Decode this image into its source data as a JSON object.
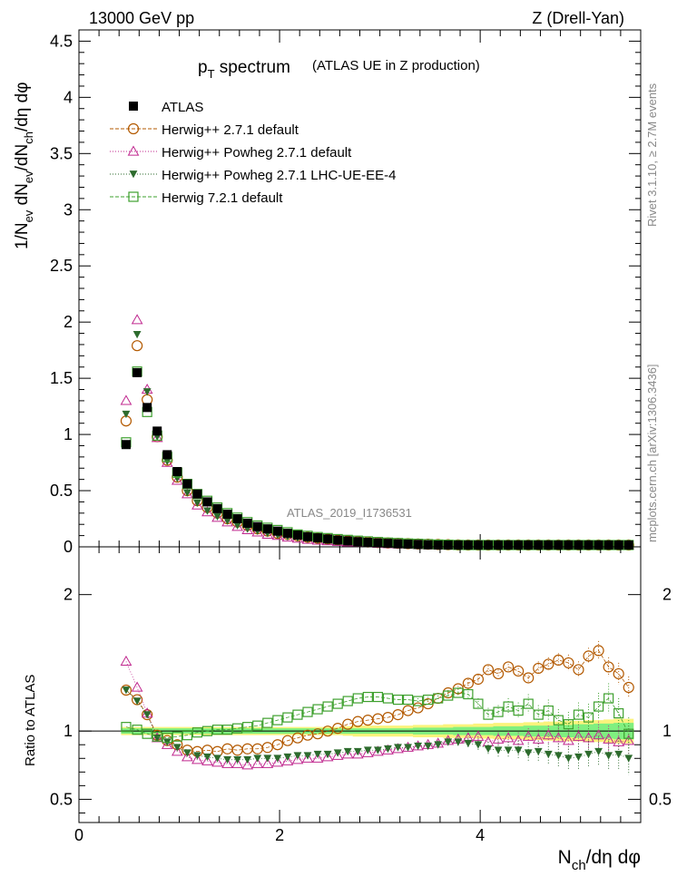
{
  "header": {
    "left": "13000 GeV pp",
    "right": "Z (Drell-Yan)"
  },
  "side": {
    "rivet": "Rivet 3.1.10, ≥ 2.7M events",
    "mcplots": "mcplots.cern.ch [arXiv:1306.3436]"
  },
  "analysis_label": "ATLAS_2019_I1736531",
  "colors": {
    "atlas": "#000000",
    "herwig271": "#b35900",
    "powheg": "#c0288f",
    "lhcue": "#2d6b2d",
    "herwig721": "#3ea02e",
    "band_inner": "#80ef80",
    "band_outer": "#fbf37c"
  },
  "chart_data": [
    {
      "type": "scatter",
      "title": "p_T spectrum",
      "title_main": "p",
      "title_sub": "T",
      "title_rest": " spectrum",
      "title_note": "(ATLAS UE in Z production)",
      "ylabel": "1/N_ev dN_ev/dN_ch/dη dφ",
      "ylim": [
        0,
        4.6
      ],
      "yticks": [
        "0",
        "0.5",
        "1",
        "1.5",
        "2",
        "2.5",
        "3",
        "3.5",
        "4",
        "4.5"
      ],
      "legend_position": "top-left",
      "x": [
        0.47,
        0.58,
        0.68,
        0.78,
        0.88,
        0.98,
        1.08,
        1.18,
        1.28,
        1.38,
        1.48,
        1.58,
        1.68,
        1.78,
        1.88,
        1.98,
        2.08,
        2.18,
        2.28,
        2.38,
        2.48,
        2.58,
        2.68,
        2.78,
        2.88,
        2.98,
        3.08,
        3.18,
        3.28,
        3.38,
        3.48,
        3.58,
        3.68,
        3.78,
        3.88,
        3.98,
        4.08,
        4.18,
        4.28,
        4.38,
        4.48,
        4.58,
        4.68,
        4.78,
        4.88,
        4.98,
        5.08,
        5.18,
        5.28,
        5.38,
        5.48
      ],
      "series": [
        {
          "name": "ATLAS",
          "values": [
            0.91,
            1.55,
            1.24,
            1.03,
            0.82,
            0.67,
            0.56,
            0.47,
            0.4,
            0.34,
            0.29,
            0.25,
            0.21,
            0.18,
            0.16,
            0.14,
            0.12,
            0.105,
            0.09,
            0.08,
            0.07,
            0.06,
            0.053,
            0.046,
            0.04,
            0.035,
            0.031,
            0.027,
            0.024,
            0.021,
            0.018,
            0.016,
            0.014,
            0.012,
            0.011,
            0.0095,
            0.0085,
            0.0075,
            0.0065,
            0.0058,
            0.005,
            0.0045,
            0.004,
            0.0035,
            0.003,
            0.0027,
            0.0024,
            0.0021,
            0.0019,
            0.0017,
            0.0015
          ]
        },
        {
          "name": "Herwig++ 2.7.1 default",
          "values": [
            1.12,
            1.79,
            1.31,
            0.98,
            0.77,
            0.62,
            0.5,
            0.41,
            0.35,
            0.3,
            0.25,
            0.22,
            0.19,
            0.16,
            0.14,
            0.12,
            0.11,
            0.097,
            0.085,
            0.076,
            0.068,
            0.06,
            0.054,
            0.048,
            0.043,
            0.038,
            0.034,
            0.031,
            0.028,
            0.025,
            0.023,
            0.021,
            0.019,
            0.017,
            0.015,
            0.014,
            0.013,
            0.012,
            0.011,
            0.0098,
            0.0089,
            0.008,
            0.0072,
            0.0065,
            0.0058,
            0.0052,
            0.0048,
            0.0043,
            0.004,
            0.0036,
            0.0032
          ]
        },
        {
          "name": "Herwig++ Powheg 2.7.1 default",
          "values": [
            1.3,
            2.02,
            1.4,
            0.97,
            0.75,
            0.59,
            0.47,
            0.37,
            0.31,
            0.26,
            0.22,
            0.18,
            0.15,
            0.13,
            0.11,
            0.1,
            0.085,
            0.075,
            0.065,
            0.058,
            0.052,
            0.046,
            0.041,
            0.037,
            0.033,
            0.029,
            0.026,
            0.023,
            0.021,
            0.018,
            0.016,
            0.014,
            0.013,
            0.011,
            0.01,
            0.0088,
            0.0078,
            0.007,
            0.0062,
            0.0055,
            0.0049,
            0.0044,
            0.0039,
            0.0035,
            0.0031,
            0.0028,
            0.0025,
            0.0022,
            0.002,
            0.0018,
            0.0016
          ]
        },
        {
          "name": "Herwig++ Powheg 2.7.1 LHC-UE-EE-4",
          "values": [
            1.18,
            1.89,
            1.38,
            0.98,
            0.76,
            0.61,
            0.48,
            0.39,
            0.32,
            0.27,
            0.23,
            0.19,
            0.16,
            0.14,
            0.12,
            0.105,
            0.09,
            0.08,
            0.07,
            0.062,
            0.055,
            0.048,
            0.043,
            0.038,
            0.034,
            0.03,
            0.027,
            0.024,
            0.021,
            0.019,
            0.016,
            0.014,
            0.013,
            0.011,
            0.0095,
            0.0083,
            0.0073,
            0.0064,
            0.0056,
            0.005,
            0.0043,
            0.0038,
            0.0033,
            0.0029,
            0.0026,
            0.0023,
            0.002,
            0.0018,
            0.0016,
            0.0014,
            0.0013
          ]
        },
        {
          "name": "Herwig 7.2.1 default",
          "values": [
            0.93,
            1.56,
            1.2,
            0.99,
            0.8,
            0.66,
            0.56,
            0.47,
            0.41,
            0.35,
            0.3,
            0.26,
            0.22,
            0.19,
            0.17,
            0.15,
            0.13,
            0.11,
            0.098,
            0.087,
            0.078,
            0.069,
            0.062,
            0.055,
            0.049,
            0.043,
            0.038,
            0.034,
            0.03,
            0.027,
            0.024,
            0.021,
            0.019,
            0.017,
            0.015,
            0.013,
            0.012,
            0.011,
            0.0096,
            0.0085,
            0.0075,
            0.0066,
            0.0058,
            0.0052,
            0.0046,
            0.0041,
            0.0037,
            0.0033,
            0.003,
            0.0027,
            0.0024
          ]
        }
      ]
    },
    {
      "type": "scatter",
      "ylabel": "Ratio to ATLAS",
      "xlabel": "N_ch/dη dφ",
      "xlabel_main": "N",
      "xlabel_sub": "ch",
      "xlabel_rest": "/dη dφ",
      "xlim": [
        0,
        5.6
      ],
      "ylim": [
        0.33,
        2.35
      ],
      "xticks": [
        "0",
        "2",
        "4"
      ],
      "yticks": [
        "0.5",
        "1",
        "2"
      ],
      "reference_band": "ATLAS uncertainty (green inner, yellow outer)",
      "x": [
        0.47,
        0.58,
        0.68,
        0.78,
        0.88,
        0.98,
        1.08,
        1.18,
        1.28,
        1.38,
        1.48,
        1.58,
        1.68,
        1.78,
        1.88,
        1.98,
        2.08,
        2.18,
        2.28,
        2.38,
        2.48,
        2.58,
        2.68,
        2.78,
        2.88,
        2.98,
        3.08,
        3.18,
        3.28,
        3.38,
        3.48,
        3.58,
        3.68,
        3.78,
        3.88,
        3.98,
        4.08,
        4.18,
        4.28,
        4.38,
        4.48,
        4.58,
        4.68,
        4.78,
        4.88,
        4.98,
        5.08,
        5.18,
        5.28,
        5.38,
        5.48
      ],
      "band_inner": [
        0.02,
        0.02,
        0.02,
        0.02,
        0.02,
        0.02,
        0.02,
        0.02,
        0.02,
        0.02,
        0.02,
        0.02,
        0.02,
        0.02,
        0.02,
        0.02,
        0.02,
        0.02,
        0.02,
        0.02,
        0.02,
        0.02,
        0.02,
        0.02,
        0.02,
        0.02,
        0.02,
        0.02,
        0.02,
        0.025,
        0.025,
        0.025,
        0.025,
        0.03,
        0.03,
        0.03,
        0.03,
        0.035,
        0.035,
        0.035,
        0.04,
        0.04,
        0.04,
        0.045,
        0.045,
        0.05,
        0.05,
        0.055,
        0.055,
        0.06,
        0.06
      ],
      "band_outer": [
        0.03,
        0.03,
        0.03,
        0.03,
        0.03,
        0.03,
        0.03,
        0.03,
        0.03,
        0.03,
        0.03,
        0.03,
        0.03,
        0.03,
        0.03,
        0.03,
        0.03,
        0.03,
        0.03,
        0.03,
        0.03,
        0.03,
        0.035,
        0.04,
        0.04,
        0.04,
        0.04,
        0.04,
        0.04,
        0.045,
        0.045,
        0.045,
        0.05,
        0.05,
        0.05,
        0.055,
        0.055,
        0.06,
        0.06,
        0.06,
        0.065,
        0.065,
        0.07,
        0.07,
        0.075,
        0.075,
        0.08,
        0.08,
        0.085,
        0.09,
        0.09
      ],
      "series": [
        {
          "name": "Herwig++ 2.7.1 default",
          "values": [
            1.3,
            1.23,
            1.12,
            0.97,
            0.93,
            0.9,
            0.86,
            0.85,
            0.86,
            0.85,
            0.87,
            0.86,
            0.87,
            0.87,
            0.88,
            0.9,
            0.93,
            0.95,
            0.97,
            0.98,
            1.0,
            1.02,
            1.05,
            1.07,
            1.08,
            1.09,
            1.1,
            1.12,
            1.15,
            1.17,
            1.2,
            1.24,
            1.28,
            1.31,
            1.35,
            1.38,
            1.45,
            1.42,
            1.47,
            1.44,
            1.39,
            1.46,
            1.49,
            1.52,
            1.5,
            1.45,
            1.55,
            1.59,
            1.47,
            1.42,
            1.32
          ],
          "errors": [
            0.01,
            0.01,
            0.01,
            0.01,
            0.01,
            0.01,
            0.01,
            0.01,
            0.01,
            0.01,
            0.01,
            0.01,
            0.01,
            0.01,
            0.01,
            0.01,
            0.01,
            0.01,
            0.01,
            0.01,
            0.01,
            0.01,
            0.01,
            0.01,
            0.01,
            0.01,
            0.01,
            0.01,
            0.01,
            0.01,
            0.02,
            0.02,
            0.02,
            0.02,
            0.03,
            0.03,
            0.03,
            0.03,
            0.04,
            0.04,
            0.04,
            0.05,
            0.05,
            0.05,
            0.06,
            0.06,
            0.06,
            0.07,
            0.07,
            0.08,
            0.08
          ]
        },
        {
          "name": "Herwig++ Powheg 2.7.1 default",
          "values": [
            1.51,
            1.32,
            1.13,
            0.95,
            0.9,
            0.85,
            0.81,
            0.79,
            0.78,
            0.77,
            0.76,
            0.76,
            0.75,
            0.76,
            0.76,
            0.77,
            0.78,
            0.79,
            0.8,
            0.8,
            0.81,
            0.82,
            0.83,
            0.83,
            0.84,
            0.85,
            0.86,
            0.87,
            0.88,
            0.89,
            0.9,
            0.91,
            0.93,
            0.94,
            0.95,
            0.96,
            0.92,
            0.94,
            0.95,
            0.93,
            0.96,
            0.94,
            0.97,
            0.95,
            0.93,
            0.96,
            0.95,
            0.97,
            0.94,
            0.92,
            0.93
          ],
          "errors": [
            0.01,
            0.01,
            0.01,
            0.01,
            0.01,
            0.01,
            0.01,
            0.01,
            0.01,
            0.01,
            0.01,
            0.01,
            0.01,
            0.01,
            0.01,
            0.01,
            0.01,
            0.01,
            0.01,
            0.01,
            0.01,
            0.01,
            0.01,
            0.01,
            0.01,
            0.01,
            0.01,
            0.01,
            0.01,
            0.02,
            0.02,
            0.02,
            0.02,
            0.03,
            0.03,
            0.04,
            0.04,
            0.05,
            0.05,
            0.06,
            0.06,
            0.07,
            0.07,
            0.08,
            0.08,
            0.09,
            0.09,
            0.1,
            0.1,
            0.11,
            0.11
          ]
        },
        {
          "name": "Herwig++ Powheg 2.7.1 LHC-UE-EE-4",
          "values": [
            1.3,
            1.22,
            1.12,
            0.95,
            0.92,
            0.88,
            0.84,
            0.82,
            0.81,
            0.8,
            0.79,
            0.79,
            0.79,
            0.8,
            0.8,
            0.8,
            0.81,
            0.82,
            0.82,
            0.83,
            0.83,
            0.84,
            0.85,
            0.85,
            0.86,
            0.86,
            0.87,
            0.88,
            0.88,
            0.89,
            0.89,
            0.9,
            0.92,
            0.92,
            0.91,
            0.9,
            0.87,
            0.86,
            0.86,
            0.86,
            0.84,
            0.85,
            0.83,
            0.82,
            0.8,
            0.81,
            0.83,
            0.85,
            0.82,
            0.83,
            0.8
          ],
          "errors": [
            0.01,
            0.01,
            0.01,
            0.01,
            0.01,
            0.01,
            0.01,
            0.01,
            0.01,
            0.01,
            0.01,
            0.01,
            0.01,
            0.01,
            0.01,
            0.01,
            0.01,
            0.01,
            0.01,
            0.01,
            0.01,
            0.01,
            0.01,
            0.01,
            0.01,
            0.01,
            0.01,
            0.01,
            0.01,
            0.02,
            0.02,
            0.03,
            0.03,
            0.04,
            0.04,
            0.05,
            0.05,
            0.06,
            0.06,
            0.07,
            0.07,
            0.08,
            0.08,
            0.09,
            0.09,
            0.1,
            0.1,
            0.11,
            0.11,
            0.12,
            0.12
          ]
        },
        {
          "name": "Herwig 7.2.1 default",
          "values": [
            1.03,
            1.01,
            0.98,
            0.96,
            0.95,
            0.96,
            0.97,
            0.99,
            1.0,
            1.01,
            1.01,
            1.02,
            1.03,
            1.04,
            1.06,
            1.08,
            1.1,
            1.12,
            1.14,
            1.16,
            1.18,
            1.2,
            1.22,
            1.24,
            1.25,
            1.25,
            1.24,
            1.23,
            1.23,
            1.22,
            1.23,
            1.24,
            1.26,
            1.28,
            1.27,
            1.2,
            1.12,
            1.14,
            1.18,
            1.15,
            1.2,
            1.12,
            1.15,
            1.08,
            1.05,
            1.12,
            1.1,
            1.18,
            1.24,
            1.13,
            0.98
          ],
          "errors": [
            0.01,
            0.01,
            0.01,
            0.01,
            0.01,
            0.01,
            0.01,
            0.01,
            0.01,
            0.01,
            0.01,
            0.01,
            0.01,
            0.01,
            0.01,
            0.01,
            0.01,
            0.01,
            0.01,
            0.01,
            0.01,
            0.01,
            0.01,
            0.01,
            0.01,
            0.01,
            0.01,
            0.01,
            0.01,
            0.02,
            0.02,
            0.02,
            0.03,
            0.03,
            0.04,
            0.04,
            0.05,
            0.05,
            0.06,
            0.06,
            0.07,
            0.07,
            0.08,
            0.08,
            0.09,
            0.09,
            0.1,
            0.1,
            0.11,
            0.11,
            0.12
          ]
        }
      ]
    }
  ]
}
